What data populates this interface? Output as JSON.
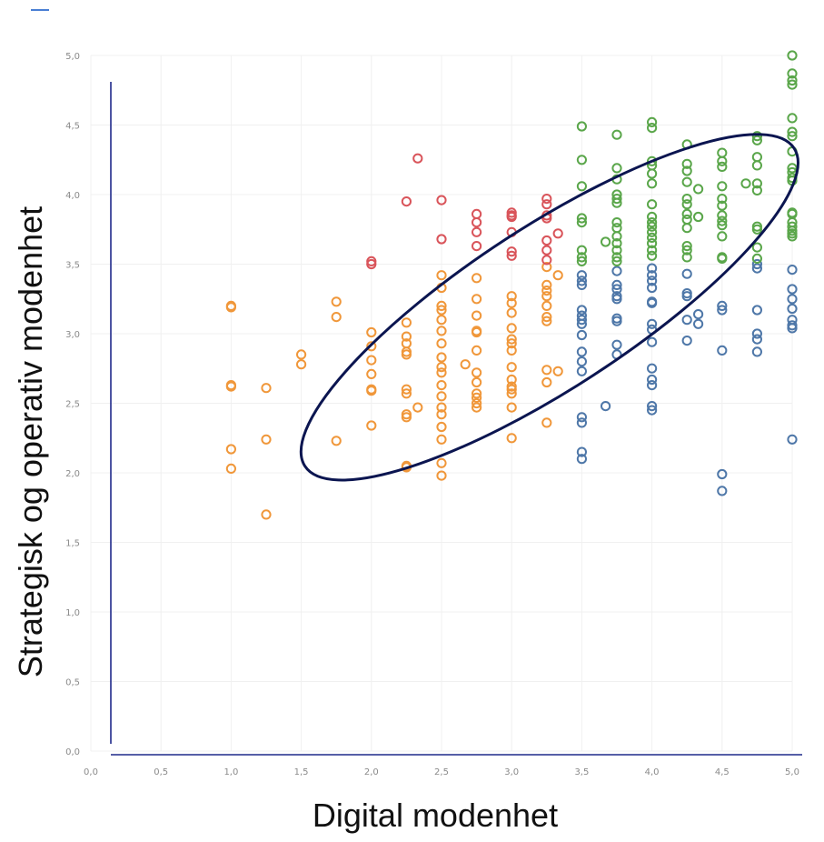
{
  "chart_data": {
    "type": "scatter",
    "title": "",
    "xlabel": "Digital modenhet",
    "ylabel": "Strategisk og operativ modenhet",
    "xlim": [
      0,
      5
    ],
    "ylim": [
      0,
      5
    ],
    "x_ticks": [
      "0,0",
      "0,5",
      "1,0",
      "1,5",
      "2,0",
      "2,5",
      "3,0",
      "3,5",
      "4,0",
      "4,5",
      "5,0"
    ],
    "y_ticks": [
      "0,0",
      "0,5",
      "1,0",
      "1,5",
      "2,0",
      "2,5",
      "3,0",
      "3,5",
      "4,0",
      "4,5",
      "5,0"
    ],
    "grid": true,
    "colors": {
      "orange": "#f0973a",
      "red": "#d9545a",
      "blue": "#4e77a8",
      "green": "#5aa64a",
      "ellipse": "#0b1550",
      "axis": "#1f2a8a",
      "grid": "#f0f0f0"
    },
    "annotation_ellipse": {
      "center": [
        3.27,
        3.19
      ],
      "angle_deg": 33
    },
    "series": [
      {
        "color": "orange",
        "points": [
          [
            1.0,
            3.2
          ],
          [
            1.0,
            3.19
          ],
          [
            1.0,
            2.63
          ],
          [
            1.0,
            2.62
          ],
          [
            1.0,
            2.17
          ],
          [
            1.0,
            2.03
          ],
          [
            1.25,
            2.61
          ],
          [
            1.25,
            2.24
          ],
          [
            1.25,
            1.7
          ],
          [
            1.5,
            2.85
          ],
          [
            1.5,
            2.78
          ],
          [
            1.75,
            3.23
          ],
          [
            1.75,
            3.12
          ],
          [
            1.75,
            2.23
          ],
          [
            2.0,
            3.01
          ],
          [
            2.0,
            2.91
          ],
          [
            2.0,
            2.81
          ],
          [
            2.0,
            2.71
          ],
          [
            2.0,
            2.6
          ],
          [
            2.0,
            2.59
          ],
          [
            2.0,
            2.34
          ],
          [
            2.25,
            3.08
          ],
          [
            2.25,
            2.98
          ],
          [
            2.25,
            2.93
          ],
          [
            2.25,
            2.87
          ],
          [
            2.25,
            2.85
          ],
          [
            2.25,
            2.6
          ],
          [
            2.25,
            2.57
          ],
          [
            2.25,
            2.42
          ],
          [
            2.25,
            2.4
          ],
          [
            2.25,
            2.05
          ],
          [
            2.25,
            2.04
          ],
          [
            2.33,
            2.47
          ],
          [
            2.5,
            3.42
          ],
          [
            2.5,
            3.33
          ],
          [
            2.5,
            3.2
          ],
          [
            2.5,
            3.17
          ],
          [
            2.5,
            3.1
          ],
          [
            2.5,
            3.02
          ],
          [
            2.5,
            2.93
          ],
          [
            2.5,
            2.83
          ],
          [
            2.5,
            2.76
          ],
          [
            2.5,
            2.72
          ],
          [
            2.5,
            2.63
          ],
          [
            2.5,
            2.55
          ],
          [
            2.5,
            2.47
          ],
          [
            2.5,
            2.42
          ],
          [
            2.5,
            2.33
          ],
          [
            2.5,
            2.24
          ],
          [
            2.5,
            2.07
          ],
          [
            2.5,
            1.98
          ],
          [
            2.67,
            2.78
          ],
          [
            2.75,
            3.4
          ],
          [
            2.75,
            3.25
          ],
          [
            2.75,
            3.13
          ],
          [
            2.75,
            3.02
          ],
          [
            2.75,
            3.01
          ],
          [
            2.75,
            2.88
          ],
          [
            2.75,
            2.72
          ],
          [
            2.75,
            2.65
          ],
          [
            2.75,
            2.57
          ],
          [
            2.75,
            2.54
          ],
          [
            2.75,
            2.5
          ],
          [
            2.75,
            2.47
          ],
          [
            3.0,
            3.27
          ],
          [
            3.0,
            3.22
          ],
          [
            3.0,
            3.15
          ],
          [
            3.0,
            3.04
          ],
          [
            3.0,
            2.96
          ],
          [
            3.0,
            2.93
          ],
          [
            3.0,
            2.88
          ],
          [
            3.0,
            2.76
          ],
          [
            3.0,
            2.67
          ],
          [
            3.0,
            2.62
          ],
          [
            3.0,
            2.6
          ],
          [
            3.0,
            2.57
          ],
          [
            3.0,
            2.47
          ],
          [
            3.0,
            2.25
          ],
          [
            3.25,
            3.48
          ],
          [
            3.25,
            3.35
          ],
          [
            3.25,
            3.31
          ],
          [
            3.25,
            3.27
          ],
          [
            3.25,
            3.2
          ],
          [
            3.25,
            3.12
          ],
          [
            3.25,
            3.09
          ],
          [
            3.25,
            2.74
          ],
          [
            3.25,
            2.65
          ],
          [
            3.25,
            2.36
          ],
          [
            3.33,
            3.42
          ],
          [
            3.33,
            2.73
          ]
        ]
      },
      {
        "color": "red",
        "points": [
          [
            2.0,
            3.52
          ],
          [
            2.0,
            3.5
          ],
          [
            2.25,
            3.95
          ],
          [
            2.33,
            4.26
          ],
          [
            2.5,
            3.96
          ],
          [
            2.5,
            3.68
          ],
          [
            2.75,
            3.86
          ],
          [
            2.75,
            3.8
          ],
          [
            2.75,
            3.73
          ],
          [
            2.75,
            3.63
          ],
          [
            3.0,
            3.87
          ],
          [
            3.0,
            3.85
          ],
          [
            3.0,
            3.84
          ],
          [
            3.0,
            3.73
          ],
          [
            3.0,
            3.59
          ],
          [
            3.0,
            3.56
          ],
          [
            3.25,
            3.97
          ],
          [
            3.25,
            3.93
          ],
          [
            3.25,
            3.85
          ],
          [
            3.25,
            3.83
          ],
          [
            3.25,
            3.67
          ],
          [
            3.25,
            3.6
          ],
          [
            3.25,
            3.53
          ],
          [
            3.33,
            3.72
          ]
        ]
      },
      {
        "color": "blue",
        "points": [
          [
            3.5,
            3.42
          ],
          [
            3.5,
            3.38
          ],
          [
            3.5,
            3.35
          ],
          [
            3.5,
            3.17
          ],
          [
            3.5,
            3.13
          ],
          [
            3.5,
            3.1
          ],
          [
            3.5,
            3.07
          ],
          [
            3.5,
            2.99
          ],
          [
            3.5,
            2.87
          ],
          [
            3.5,
            2.8
          ],
          [
            3.5,
            2.73
          ],
          [
            3.5,
            2.4
          ],
          [
            3.5,
            2.36
          ],
          [
            3.5,
            2.15
          ],
          [
            3.5,
            2.1
          ],
          [
            3.67,
            2.48
          ],
          [
            3.75,
            3.45
          ],
          [
            3.75,
            3.35
          ],
          [
            3.75,
            3.32
          ],
          [
            3.75,
            3.27
          ],
          [
            3.75,
            3.25
          ],
          [
            3.75,
            3.11
          ],
          [
            3.75,
            3.09
          ],
          [
            3.75,
            2.92
          ],
          [
            3.75,
            2.85
          ],
          [
            4.0,
            3.47
          ],
          [
            4.0,
            3.42
          ],
          [
            4.0,
            3.38
          ],
          [
            4.0,
            3.33
          ],
          [
            4.0,
            3.23
          ],
          [
            4.0,
            3.22
          ],
          [
            4.0,
            3.07
          ],
          [
            4.0,
            3.03
          ],
          [
            4.0,
            2.94
          ],
          [
            4.0,
            2.75
          ],
          [
            4.0,
            2.67
          ],
          [
            4.0,
            2.63
          ],
          [
            4.0,
            2.48
          ],
          [
            4.0,
            2.45
          ],
          [
            4.25,
            3.43
          ],
          [
            4.25,
            3.29
          ],
          [
            4.25,
            3.27
          ],
          [
            4.25,
            3.1
          ],
          [
            4.25,
            2.95
          ],
          [
            4.33,
            3.14
          ],
          [
            4.33,
            3.07
          ],
          [
            4.5,
            3.2
          ],
          [
            4.5,
            3.17
          ],
          [
            4.5,
            2.88
          ],
          [
            4.5,
            1.99
          ],
          [
            4.5,
            1.87
          ],
          [
            4.75,
            3.5
          ],
          [
            4.75,
            3.47
          ],
          [
            4.75,
            3.17
          ],
          [
            4.75,
            3.0
          ],
          [
            4.75,
            2.96
          ],
          [
            4.75,
            2.87
          ],
          [
            5.0,
            3.46
          ],
          [
            5.0,
            3.32
          ],
          [
            5.0,
            3.25
          ],
          [
            5.0,
            3.18
          ],
          [
            5.0,
            3.1
          ],
          [
            5.0,
            3.06
          ],
          [
            5.0,
            3.04
          ],
          [
            5.0,
            2.24
          ]
        ]
      },
      {
        "color": "green",
        "points": [
          [
            3.5,
            4.49
          ],
          [
            3.5,
            4.25
          ],
          [
            3.5,
            4.06
          ],
          [
            3.5,
            3.83
          ],
          [
            3.5,
            3.8
          ],
          [
            3.5,
            3.6
          ],
          [
            3.5,
            3.55
          ],
          [
            3.5,
            3.52
          ],
          [
            3.67,
            3.66
          ],
          [
            3.75,
            4.43
          ],
          [
            3.75,
            4.19
          ],
          [
            3.75,
            4.11
          ],
          [
            3.75,
            4.0
          ],
          [
            3.75,
            3.97
          ],
          [
            3.75,
            3.94
          ],
          [
            3.75,
            3.8
          ],
          [
            3.75,
            3.76
          ],
          [
            3.75,
            3.7
          ],
          [
            3.75,
            3.65
          ],
          [
            3.75,
            3.6
          ],
          [
            3.75,
            3.55
          ],
          [
            3.75,
            3.52
          ],
          [
            4.0,
            4.52
          ],
          [
            4.0,
            4.48
          ],
          [
            4.0,
            4.24
          ],
          [
            4.0,
            4.21
          ],
          [
            4.0,
            4.15
          ],
          [
            4.0,
            4.08
          ],
          [
            4.0,
            3.93
          ],
          [
            4.0,
            3.84
          ],
          [
            4.0,
            3.8
          ],
          [
            4.0,
            3.77
          ],
          [
            4.0,
            3.73
          ],
          [
            4.0,
            3.69
          ],
          [
            4.0,
            3.65
          ],
          [
            4.0,
            3.6
          ],
          [
            4.0,
            3.56
          ],
          [
            4.25,
            4.36
          ],
          [
            4.25,
            4.22
          ],
          [
            4.25,
            4.17
          ],
          [
            4.25,
            4.09
          ],
          [
            4.25,
            3.97
          ],
          [
            4.25,
            3.93
          ],
          [
            4.25,
            3.86
          ],
          [
            4.25,
            3.82
          ],
          [
            4.25,
            3.76
          ],
          [
            4.25,
            3.63
          ],
          [
            4.25,
            3.6
          ],
          [
            4.25,
            3.55
          ],
          [
            4.33,
            4.04
          ],
          [
            4.33,
            3.84
          ],
          [
            4.5,
            4.3
          ],
          [
            4.5,
            4.24
          ],
          [
            4.5,
            4.2
          ],
          [
            4.5,
            4.06
          ],
          [
            4.5,
            3.97
          ],
          [
            4.5,
            3.92
          ],
          [
            4.5,
            3.85
          ],
          [
            4.5,
            3.81
          ],
          [
            4.5,
            3.78
          ],
          [
            4.5,
            3.7
          ],
          [
            4.5,
            3.55
          ],
          [
            4.5,
            3.54
          ],
          [
            4.67,
            4.08
          ],
          [
            4.75,
            4.42
          ],
          [
            4.75,
            4.39
          ],
          [
            4.75,
            4.27
          ],
          [
            4.75,
            4.21
          ],
          [
            4.75,
            4.08
          ],
          [
            4.75,
            4.03
          ],
          [
            4.75,
            3.77
          ],
          [
            4.75,
            3.75
          ],
          [
            4.75,
            3.62
          ],
          [
            4.75,
            3.54
          ],
          [
            5.0,
            5.0
          ],
          [
            5.0,
            4.87
          ],
          [
            5.0,
            4.82
          ],
          [
            5.0,
            4.79
          ],
          [
            5.0,
            4.55
          ],
          [
            5.0,
            4.45
          ],
          [
            5.0,
            4.42
          ],
          [
            5.0,
            4.31
          ],
          [
            5.0,
            4.19
          ],
          [
            5.0,
            4.16
          ],
          [
            5.0,
            4.12
          ],
          [
            5.0,
            4.1
          ],
          [
            5.0,
            3.87
          ],
          [
            5.0,
            3.86
          ],
          [
            5.0,
            3.8
          ],
          [
            5.0,
            3.77
          ],
          [
            5.0,
            3.74
          ],
          [
            5.0,
            3.72
          ],
          [
            5.0,
            3.7
          ]
        ]
      }
    ]
  }
}
